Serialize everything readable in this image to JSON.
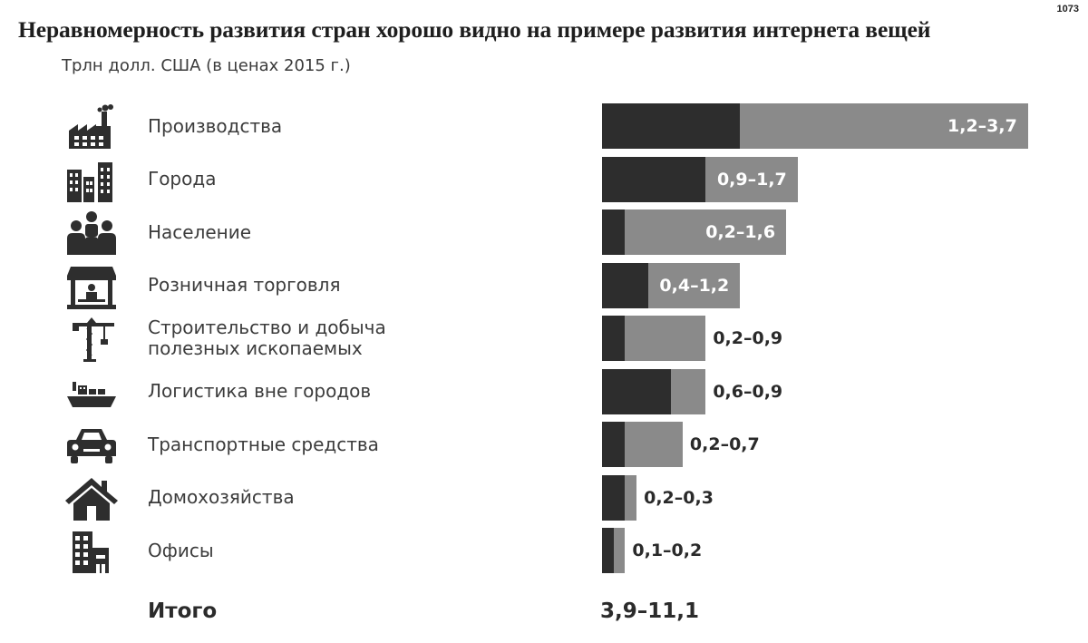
{
  "page_number": "1073",
  "title": "Неравномерность развития стран хорошо видно на примере развития интернета вещей",
  "subtitle": "Трлн долл. США (в ценах 2015 г.)",
  "colors": {
    "low": "#2d2d2d",
    "range": "#8a8a8a",
    "icon": "#2e2e2e"
  },
  "chart_data": {
    "type": "bar",
    "orientation": "horizontal",
    "stacked": true,
    "categories": [
      "Производства",
      "Города",
      "Население",
      "Розничная торговля",
      "Строительство и добыча\nполезных ископаемых",
      "Логистика вне городов",
      "Транспортные средства",
      "Домохозяйства",
      "Офисы"
    ],
    "icons": [
      "factory-icon",
      "city-buildings-icon",
      "people-icon",
      "shop-icon",
      "crane-icon",
      "ship-icon",
      "car-icon",
      "house-icon",
      "office-icon"
    ],
    "low": [
      1.2,
      0.9,
      0.2,
      0.4,
      0.2,
      0.6,
      0.2,
      0.2,
      0.1
    ],
    "high": [
      3.7,
      1.7,
      1.6,
      1.2,
      0.9,
      0.9,
      0.7,
      0.3,
      0.2
    ],
    "value_labels": [
      "1,2–3,7",
      "0,9–1,7",
      "0,2–1,6",
      "0,4–1,2",
      "0,2–0,9",
      "0,6–0,9",
      "0,2–0,7",
      "0,2–0,3",
      "0,1–0,2"
    ],
    "label_inside": [
      true,
      true,
      true,
      true,
      false,
      false,
      false,
      false,
      false
    ],
    "xlim": [
      0,
      3.7
    ],
    "grid": false,
    "legend": "none"
  },
  "total": {
    "label": "Итого",
    "value": "3,9–11,1"
  }
}
